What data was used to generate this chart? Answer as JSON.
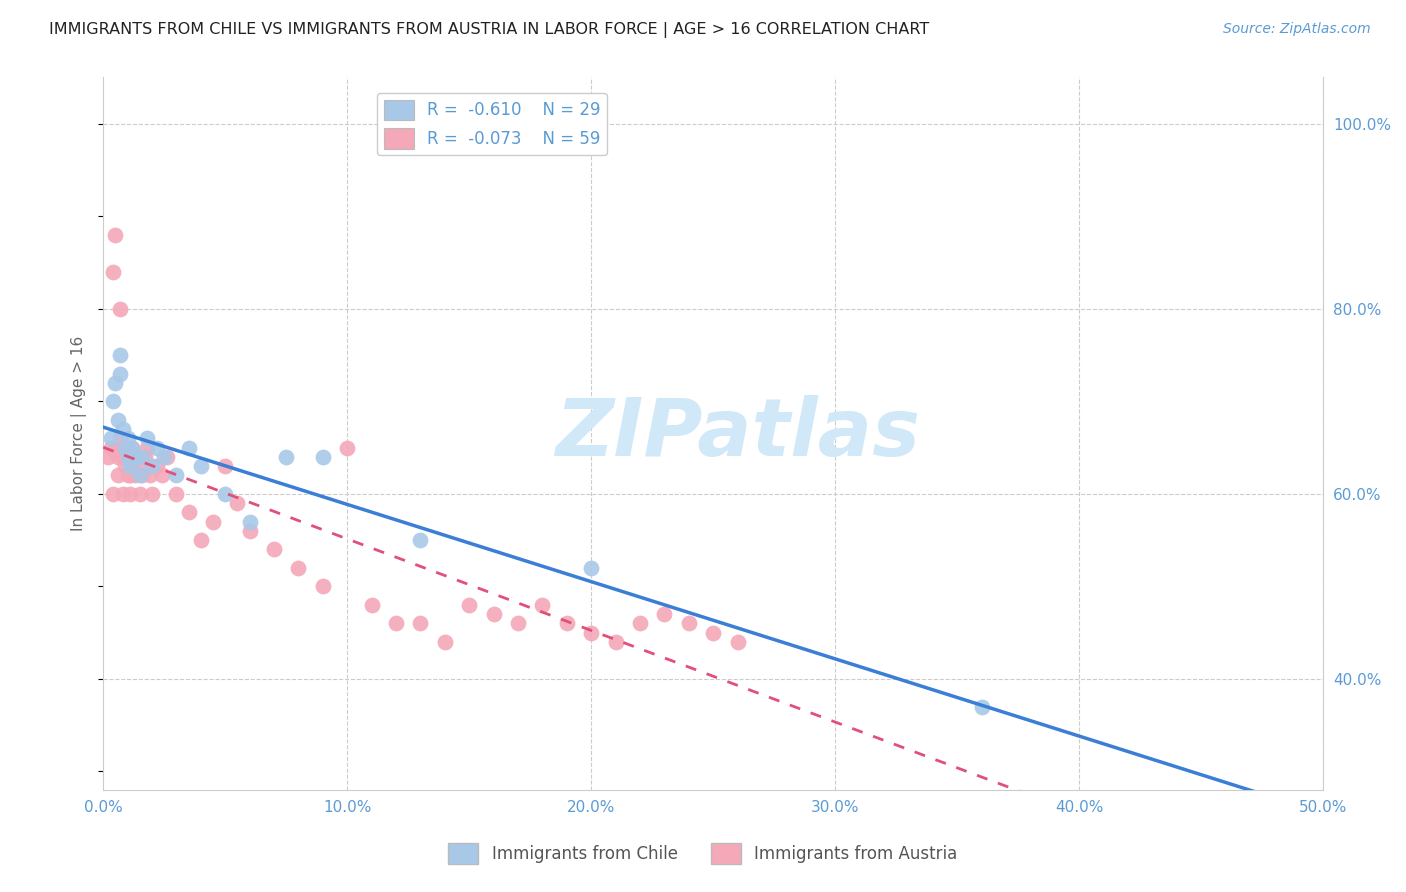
{
  "title": "IMMIGRANTS FROM CHILE VS IMMIGRANTS FROM AUSTRIA IN LABOR FORCE | AGE > 16 CORRELATION CHART",
  "source": "Source: ZipAtlas.com",
  "ylabel": "In Labor Force | Age > 16",
  "x_ticks": [
    0.0,
    0.1,
    0.2,
    0.3,
    0.4,
    0.5
  ],
  "x_tick_labels": [
    "0.0%",
    "10.0%",
    "20.0%",
    "30.0%",
    "40.0%",
    "50.0%"
  ],
  "y_tick_labels_right": [
    "40.0%",
    "60.0%",
    "80.0%",
    "100.0%"
  ],
  "y_ticks_right": [
    0.4,
    0.6,
    0.8,
    1.0
  ],
  "xlim": [
    0.0,
    0.5
  ],
  "ylim": [
    0.28,
    1.05
  ],
  "legend_chile_R": "-0.610",
  "legend_chile_N": "29",
  "legend_austria_R": "-0.073",
  "legend_austria_N": "59",
  "chile_color": "#a8c8e8",
  "austria_color": "#f4a8b8",
  "chile_line_color": "#3a7fd5",
  "austria_line_color": "#e0507a",
  "chile_scatter_x": [
    0.003,
    0.004,
    0.005,
    0.006,
    0.007,
    0.007,
    0.008,
    0.009,
    0.01,
    0.01,
    0.011,
    0.012,
    0.013,
    0.015,
    0.016,
    0.018,
    0.02,
    0.022,
    0.025,
    0.03,
    0.035,
    0.04,
    0.05,
    0.06,
    0.075,
    0.09,
    0.13,
    0.2,
    0.36
  ],
  "chile_scatter_y": [
    0.66,
    0.7,
    0.72,
    0.68,
    0.73,
    0.75,
    0.67,
    0.65,
    0.64,
    0.66,
    0.63,
    0.65,
    0.64,
    0.62,
    0.64,
    0.66,
    0.63,
    0.65,
    0.64,
    0.62,
    0.65,
    0.63,
    0.6,
    0.57,
    0.64,
    0.64,
    0.55,
    0.52,
    0.37
  ],
  "austria_scatter_x": [
    0.002,
    0.003,
    0.004,
    0.004,
    0.005,
    0.005,
    0.006,
    0.006,
    0.007,
    0.007,
    0.008,
    0.008,
    0.009,
    0.009,
    0.01,
    0.01,
    0.011,
    0.011,
    0.012,
    0.012,
    0.013,
    0.014,
    0.015,
    0.015,
    0.016,
    0.017,
    0.018,
    0.019,
    0.02,
    0.022,
    0.024,
    0.026,
    0.03,
    0.035,
    0.04,
    0.045,
    0.05,
    0.055,
    0.06,
    0.07,
    0.08,
    0.09,
    0.1,
    0.11,
    0.12,
    0.13,
    0.14,
    0.15,
    0.16,
    0.17,
    0.18,
    0.19,
    0.2,
    0.21,
    0.22,
    0.23,
    0.24,
    0.25,
    0.26
  ],
  "austria_scatter_y": [
    0.64,
    0.65,
    0.84,
    0.6,
    0.65,
    0.88,
    0.62,
    0.64,
    0.8,
    0.66,
    0.64,
    0.6,
    0.63,
    0.65,
    0.62,
    0.64,
    0.62,
    0.6,
    0.63,
    0.65,
    0.62,
    0.64,
    0.6,
    0.63,
    0.62,
    0.64,
    0.65,
    0.62,
    0.6,
    0.63,
    0.62,
    0.64,
    0.6,
    0.58,
    0.55,
    0.57,
    0.63,
    0.59,
    0.56,
    0.54,
    0.52,
    0.5,
    0.65,
    0.48,
    0.46,
    0.46,
    0.44,
    0.48,
    0.47,
    0.46,
    0.48,
    0.46,
    0.45,
    0.44,
    0.46,
    0.47,
    0.46,
    0.45,
    0.44
  ],
  "background_color": "#ffffff",
  "grid_color": "#cccccc",
  "title_color": "#222222",
  "watermark": "ZIPatlas",
  "label_color": "#5b9bd5",
  "watermark_color": "#d0e8f8"
}
